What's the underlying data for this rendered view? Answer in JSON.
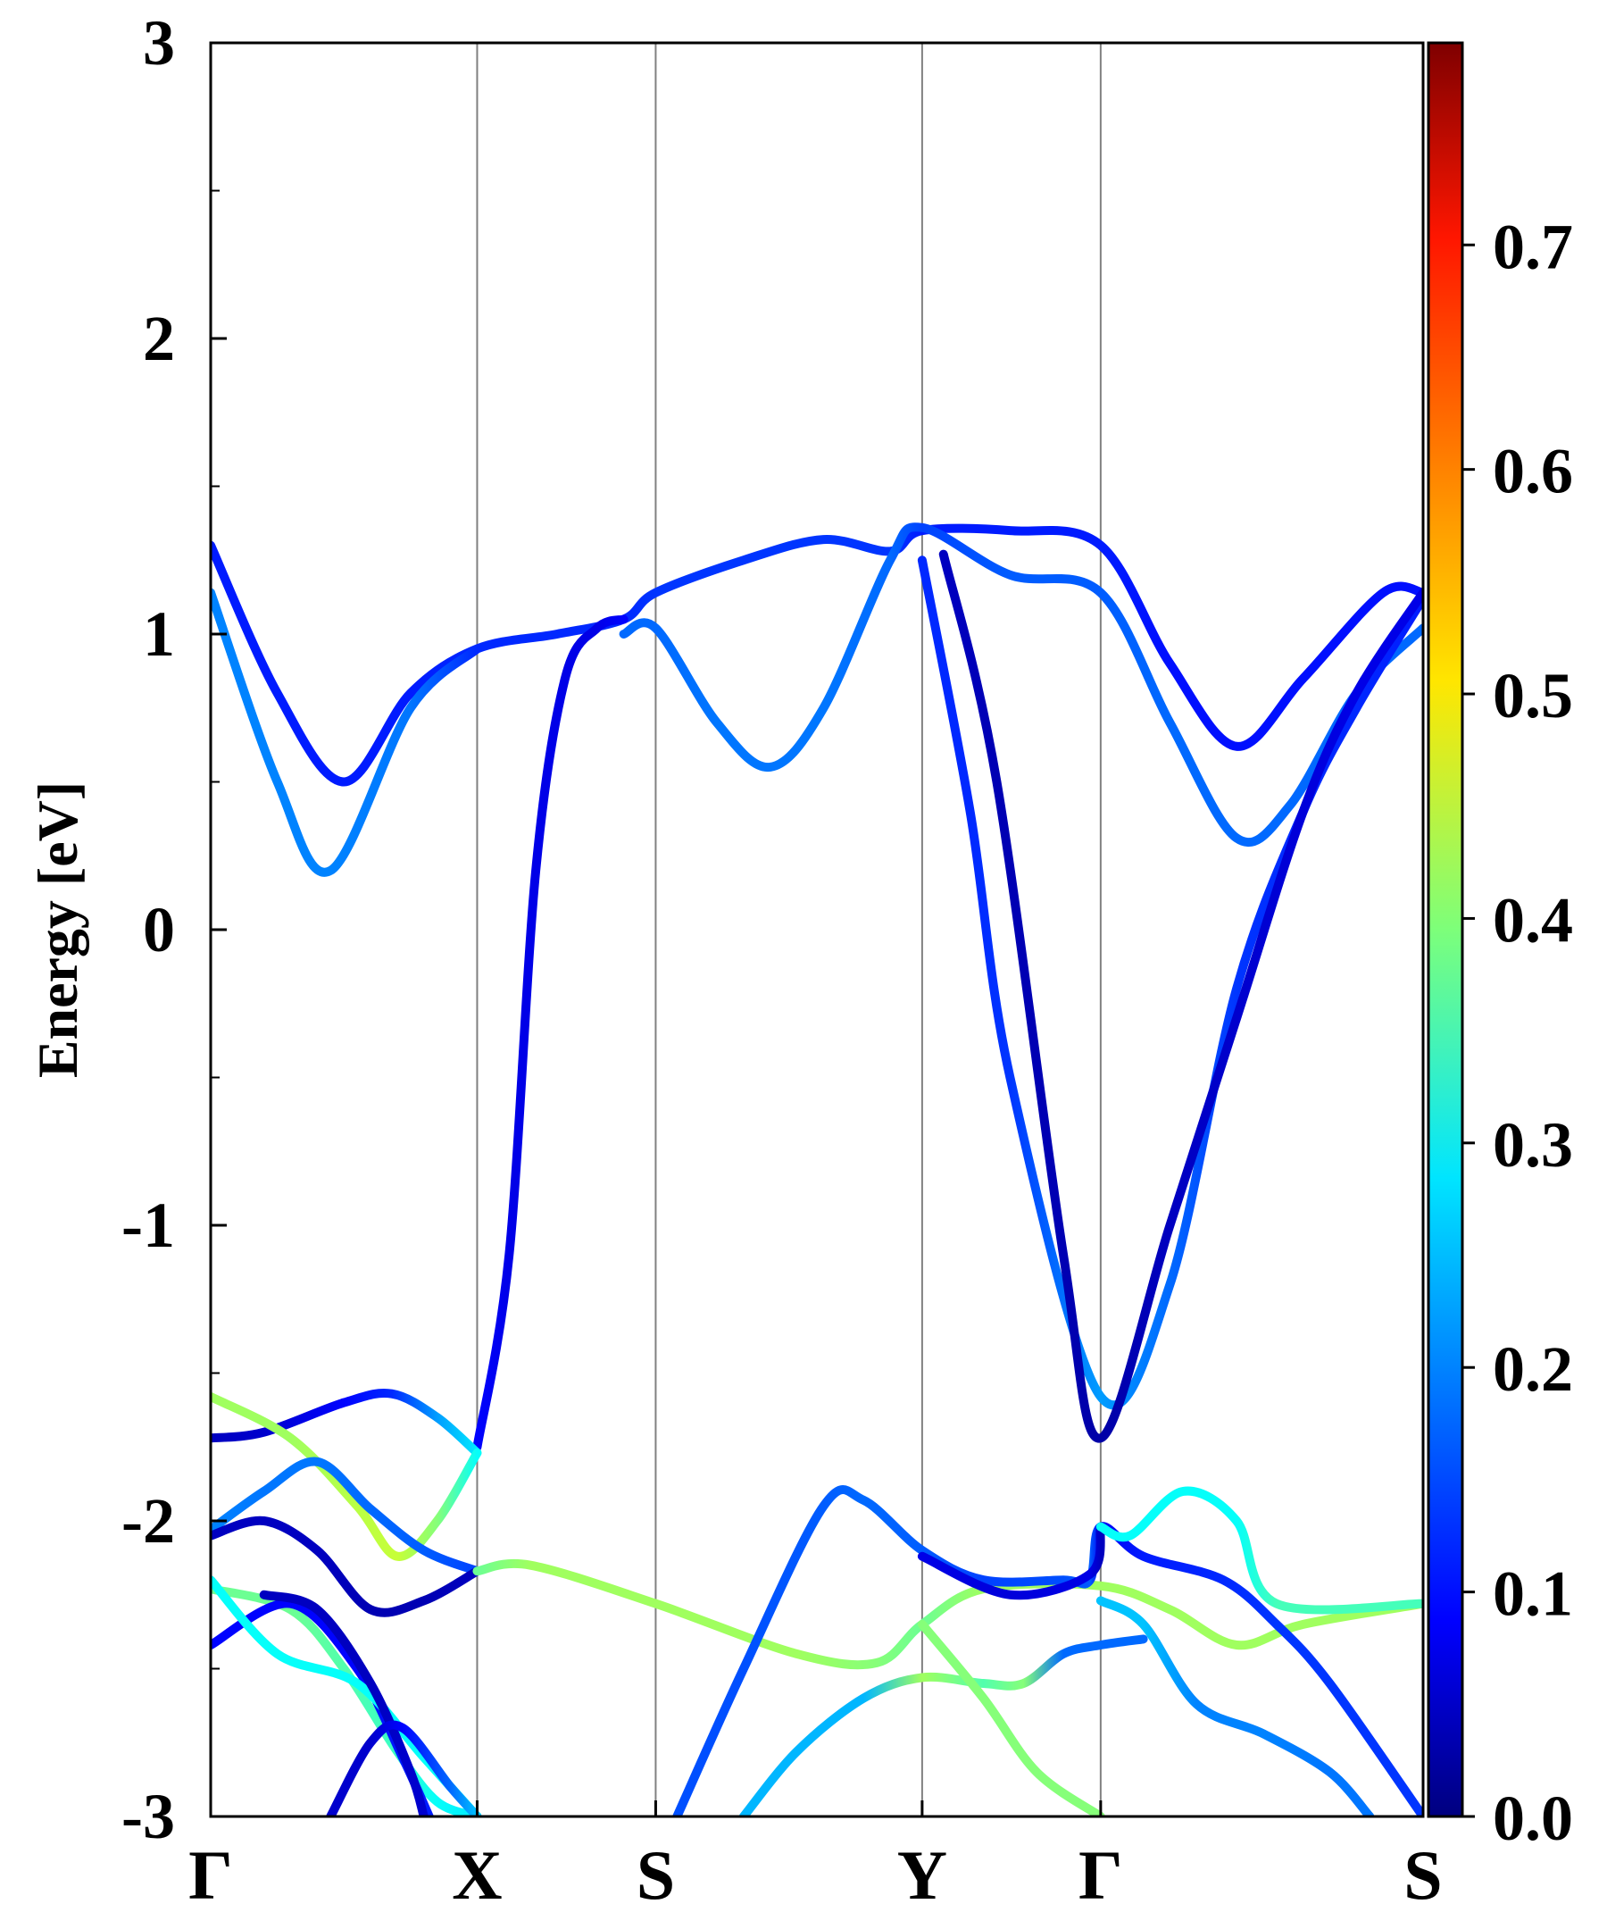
{
  "chart_data": {
    "type": "line",
    "title": "",
    "ylabel": "Energy [eV]",
    "xlabel": "",
    "ylim": [
      -3,
      3
    ],
    "yticks": [
      {
        "value": 3,
        "label": "3"
      },
      {
        "value": 2,
        "label": "2"
      },
      {
        "value": 1,
        "label": "1"
      },
      {
        "value": 0,
        "label": "0"
      },
      {
        "value": -1,
        "label": "-1"
      },
      {
        "value": -2,
        "label": "-2"
      },
      {
        "value": -3,
        "label": "-3"
      }
    ],
    "kpoints": [
      {
        "x": 0,
        "label": "Γ"
      },
      {
        "x": 1,
        "label": "X"
      },
      {
        "x": 1.67,
        "label": "S"
      },
      {
        "x": 2.67,
        "label": "Y"
      },
      {
        "x": 3.34,
        "label": "Γ"
      },
      {
        "x": 4.55,
        "label": "S"
      }
    ],
    "grid": "vertical lines at high-symmetry points",
    "colorbar": {
      "colormap": "jet",
      "range": [
        0,
        0.79
      ],
      "ticks": [
        {
          "value": 0.0,
          "label": "0.0"
        },
        {
          "value": 0.1,
          "label": "0.1"
        },
        {
          "value": 0.2,
          "label": "0.2"
        },
        {
          "value": 0.3,
          "label": "0.3"
        },
        {
          "value": 0.4,
          "label": "0.4"
        },
        {
          "value": 0.5,
          "label": "0.5"
        },
        {
          "value": 0.6,
          "label": "0.6"
        },
        {
          "value": 0.7,
          "label": "0.7"
        }
      ]
    },
    "series": [
      {
        "points": [
          [
            0,
            1.3
          ],
          [
            0.25,
            0.8
          ],
          [
            0.5,
            0.5
          ],
          [
            0.75,
            0.8
          ],
          [
            1,
            0.95
          ],
          [
            1.3,
            1.0
          ],
          [
            1.55,
            1.05
          ],
          [
            1.67,
            1.14
          ],
          [
            2.0,
            1.25
          ],
          [
            2.3,
            1.32
          ],
          [
            2.55,
            1.28
          ],
          [
            2.67,
            1.35
          ],
          [
            3.0,
            1.35
          ],
          [
            3.34,
            1.3
          ],
          [
            3.6,
            0.9
          ],
          [
            3.85,
            0.62
          ],
          [
            4.1,
            0.85
          ],
          [
            4.4,
            1.14
          ],
          [
            4.55,
            1.14
          ]
        ],
        "weights": [
          0.12,
          0.12,
          0.12,
          0.12,
          0.13,
          0.13,
          0.13,
          0.14,
          0.14,
          0.14,
          0.14,
          0.12,
          0.12,
          0.12,
          0.11,
          0.11,
          0.11,
          0.11,
          0.11
        ]
      },
      {
        "points": [
          [
            0,
            1.14
          ],
          [
            0.25,
            0.5
          ],
          [
            0.45,
            0.2
          ],
          [
            0.75,
            0.75
          ],
          [
            1,
            0.95
          ]
        ],
        "weights": [
          0.2,
          0.2,
          0.2,
          0.19,
          0.13
        ]
      },
      {
        "points": [
          [
            1.55,
            1.0
          ],
          [
            1.67,
            1.02
          ],
          [
            1.9,
            0.7
          ],
          [
            2.1,
            0.55
          ],
          [
            2.3,
            0.75
          ],
          [
            2.55,
            1.25
          ],
          [
            2.67,
            1.36
          ],
          [
            3.0,
            1.2
          ],
          [
            3.34,
            1.14
          ],
          [
            3.6,
            0.7
          ],
          [
            3.85,
            0.31
          ],
          [
            4.05,
            0.42
          ],
          [
            4.3,
            0.8
          ],
          [
            4.55,
            1.02
          ]
        ],
        "weights": [
          0.18,
          0.18,
          0.19,
          0.19,
          0.19,
          0.18,
          0.15,
          0.17,
          0.17,
          0.18,
          0.18,
          0.18,
          0.18,
          0.18
        ]
      },
      {
        "points": [
          [
            1,
            -1.75
          ],
          [
            1.12,
            -1.1
          ],
          [
            1.22,
            0.2
          ],
          [
            1.33,
            0.85
          ],
          [
            1.45,
            1.02
          ],
          [
            1.55,
            1.05
          ]
        ],
        "weights": [
          0.1,
          0.08,
          0.08,
          0.08,
          0.08,
          0.1
        ]
      },
      {
        "points": [
          [
            2.67,
            1.25
          ],
          [
            2.85,
            0.4
          ],
          [
            3.0,
            -0.5
          ],
          [
            3.34,
            -1.58
          ],
          [
            3.6,
            -1.2
          ],
          [
            3.85,
            -0.2
          ],
          [
            4.1,
            0.4
          ],
          [
            4.3,
            0.75
          ],
          [
            4.55,
            1.12
          ]
        ],
        "weights": [
          0.13,
          0.13,
          0.14,
          0.22,
          0.18,
          0.14,
          0.13,
          0.13,
          0.12
        ]
      },
      {
        "points": [
          [
            2.75,
            1.27
          ],
          [
            2.95,
            0.5
          ],
          [
            3.2,
            -1.1
          ],
          [
            3.34,
            -1.72
          ],
          [
            3.6,
            -1.0
          ],
          [
            3.85,
            -0.3
          ],
          [
            4.1,
            0.4
          ],
          [
            4.3,
            0.8
          ],
          [
            4.55,
            1.14
          ]
        ],
        "weights": [
          0.05,
          0.04,
          0.04,
          0.03,
          0.05,
          0.06,
          0.07,
          0.08,
          0.08
        ]
      },
      {
        "points": [
          [
            0,
            -1.72
          ],
          [
            0.2,
            -1.7
          ],
          [
            0.5,
            -1.6
          ],
          [
            0.68,
            -1.57
          ],
          [
            0.85,
            -1.65
          ],
          [
            1,
            -1.77
          ]
        ],
        "weights": [
          0.05,
          0.06,
          0.1,
          0.13,
          0.22,
          0.28
        ]
      },
      {
        "points": [
          [
            0,
            -1.58
          ],
          [
            0.3,
            -1.72
          ],
          [
            0.55,
            -1.95
          ],
          [
            0.7,
            -2.12
          ],
          [
            0.85,
            -2.0
          ],
          [
            1,
            -1.77
          ]
        ],
        "weights": [
          0.42,
          0.42,
          0.44,
          0.45,
          0.4,
          0.3
        ]
      },
      {
        "points": [
          [
            0,
            -2.03
          ],
          [
            0.2,
            -1.9
          ],
          [
            0.4,
            -1.8
          ],
          [
            0.6,
            -1.96
          ],
          [
            0.8,
            -2.1
          ],
          [
            1,
            -2.17
          ]
        ],
        "weights": [
          0.2,
          0.19,
          0.19,
          0.18,
          0.17,
          0.15
        ]
      },
      {
        "points": [
          [
            0,
            -2.05
          ],
          [
            0.2,
            -2.0
          ],
          [
            0.4,
            -2.1
          ],
          [
            0.6,
            -2.3
          ],
          [
            0.8,
            -2.27
          ],
          [
            1,
            -2.17
          ]
        ],
        "weights": [
          0.05,
          0.05,
          0.05,
          0.04,
          0.04,
          0.05
        ]
      },
      {
        "points": [
          [
            1,
            -2.17
          ],
          [
            1.2,
            -2.15
          ],
          [
            1.67,
            -2.28
          ],
          [
            2.2,
            -2.45
          ],
          [
            2.5,
            -2.48
          ],
          [
            2.67,
            -2.35
          ],
          [
            2.9,
            -2.23
          ],
          [
            3.34,
            -2.22
          ],
          [
            3.6,
            -2.3
          ],
          [
            3.85,
            -2.42
          ],
          [
            4.1,
            -2.35
          ],
          [
            4.55,
            -2.28
          ]
        ],
        "weights": [
          0.38,
          0.42,
          0.42,
          0.42,
          0.4,
          0.38,
          0.42,
          0.42,
          0.42,
          0.42,
          0.42,
          0.42
        ]
      },
      {
        "points": [
          [
            1.75,
            -3.0
          ],
          [
            2.0,
            -2.5
          ],
          [
            2.3,
            -1.95
          ],
          [
            2.45,
            -1.93
          ],
          [
            2.67,
            -2.1
          ],
          [
            2.9,
            -2.2
          ],
          [
            3.2,
            -2.2
          ],
          [
            3.3,
            -2.2
          ],
          [
            3.34,
            -2.02
          ],
          [
            3.5,
            -2.12
          ],
          [
            3.8,
            -2.2
          ],
          [
            4.0,
            -2.35
          ],
          [
            4.2,
            -2.55
          ],
          [
            4.55,
            -3.0
          ]
        ],
        "weights": [
          0.16,
          0.16,
          0.17,
          0.18,
          0.17,
          0.15,
          0.16,
          0.17,
          0.09,
          0.12,
          0.13,
          0.14,
          0.14,
          0.14
        ]
      },
      {
        "points": [
          [
            2.67,
            -2.12
          ],
          [
            3.0,
            -2.25
          ],
          [
            3.3,
            -2.18
          ],
          [
            3.34,
            -2.02
          ]
        ],
        "weights": [
          0.08,
          0.07,
          0.08,
          0.05
        ]
      },
      {
        "points": [
          [
            3.34,
            -2.02
          ],
          [
            3.45,
            -2.05
          ],
          [
            3.65,
            -1.9
          ],
          [
            3.85,
            -2.0
          ],
          [
            4.0,
            -2.28
          ],
          [
            4.55,
            -2.28
          ]
        ],
        "weights": [
          0.3,
          0.3,
          0.3,
          0.3,
          0.35,
          0.35
        ]
      },
      {
        "points": [
          [
            2.0,
            -3.0
          ],
          [
            2.2,
            -2.78
          ],
          [
            2.45,
            -2.6
          ],
          [
            2.67,
            -2.53
          ],
          [
            2.9,
            -2.55
          ],
          [
            3.05,
            -2.55
          ],
          [
            3.2,
            -2.45
          ],
          [
            3.34,
            -2.42
          ],
          [
            3.5,
            -2.4
          ]
        ],
        "weights": [
          0.24,
          0.24,
          0.24,
          0.42,
          0.36,
          0.4,
          0.18,
          0.18,
          0.18
        ]
      },
      {
        "points": [
          [
            3.34,
            -2.27
          ],
          [
            3.5,
            -2.35
          ],
          [
            3.7,
            -2.62
          ],
          [
            3.95,
            -2.72
          ],
          [
            4.2,
            -2.85
          ],
          [
            4.35,
            -3.0
          ]
        ],
        "weights": [
          0.25,
          0.25,
          0.2,
          0.2,
          0.19,
          0.19
        ]
      },
      {
        "points": [
          [
            2.67,
            -2.35
          ],
          [
            2.9,
            -2.6
          ],
          [
            3.1,
            -2.85
          ],
          [
            3.34,
            -3.0
          ]
        ],
        "weights": [
          0.4,
          0.4,
          0.4,
          0.4
        ]
      },
      {
        "points": [
          [
            0,
            -2.23
          ],
          [
            0.3,
            -2.3
          ],
          [
            0.5,
            -2.5
          ],
          [
            0.7,
            -2.78
          ],
          [
            0.85,
            -2.95
          ],
          [
            1,
            -3.0
          ]
        ],
        "weights": [
          0.38,
          0.38,
          0.36,
          0.34,
          0.3,
          0.28
        ]
      },
      {
        "points": [
          [
            0,
            -2.42
          ],
          [
            0.3,
            -2.28
          ],
          [
            0.55,
            -2.5
          ],
          [
            0.72,
            -2.8
          ],
          [
            0.82,
            -3.0
          ]
        ],
        "weights": [
          0.1,
          0.1,
          0.1,
          0.12,
          0.12
        ]
      },
      {
        "points": [
          [
            0,
            -2.2
          ],
          [
            0.25,
            -2.45
          ],
          [
            0.55,
            -2.55
          ],
          [
            0.8,
            -2.8
          ],
          [
            1,
            -3.0
          ]
        ],
        "weights": [
          0.3,
          0.3,
          0.3,
          0.3,
          0.3
        ]
      },
      {
        "points": [
          [
            0.2,
            -2.25
          ],
          [
            0.4,
            -2.3
          ],
          [
            0.6,
            -2.55
          ],
          [
            0.75,
            -2.85
          ],
          [
            0.8,
            -3.0
          ]
        ],
        "weights": [
          0.05,
          0.05,
          0.05,
          0.06,
          0.06
        ]
      },
      {
        "points": [
          [
            0.45,
            -3.0
          ],
          [
            0.6,
            -2.75
          ],
          [
            0.72,
            -2.7
          ],
          [
            0.9,
            -2.9
          ],
          [
            1,
            -3.0
          ]
        ],
        "weights": [
          0.06,
          0.06,
          0.1,
          0.18,
          0.25
        ]
      }
    ]
  }
}
